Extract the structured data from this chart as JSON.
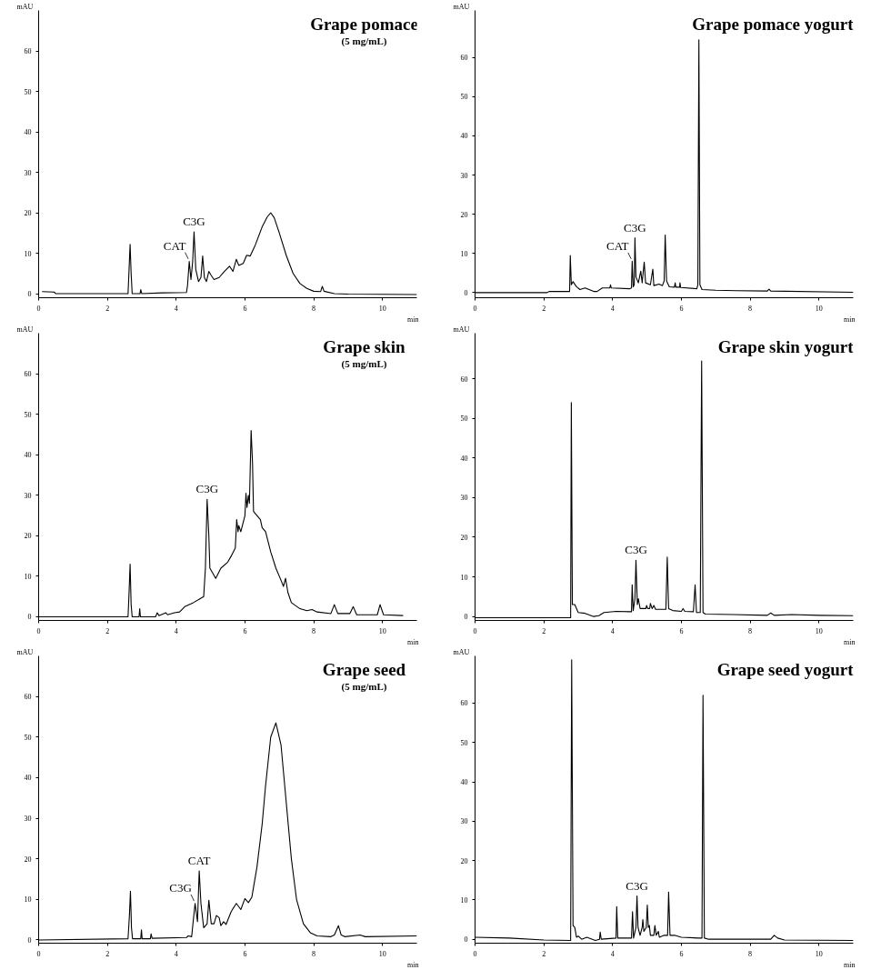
{
  "chart_data": [
    {
      "type": "line",
      "title": "Grape pomace",
      "subtitle": "(5 mg/mL)",
      "xlabel": "min",
      "ylabel": "mAU",
      "xlim": [
        0,
        11
      ],
      "ylim": [
        -1,
        70
      ],
      "xticks": [
        0,
        2,
        4,
        6,
        8,
        10
      ],
      "yticks": [
        0,
        10,
        20,
        30,
        40,
        50,
        60
      ],
      "grid": false,
      "x": [
        0.1,
        0.45,
        0.5,
        2.6,
        2.63,
        2.66,
        2.69,
        2.72,
        2.95,
        2.97,
        3.0,
        3.6,
        4.3,
        4.33,
        4.38,
        4.43,
        4.48,
        4.52,
        4.57,
        4.65,
        4.72,
        4.77,
        4.82,
        4.88,
        4.95,
        5.02,
        5.1,
        5.25,
        5.4,
        5.55,
        5.65,
        5.75,
        5.82,
        5.95,
        6.05,
        6.15,
        6.3,
        6.5,
        6.65,
        6.75,
        6.85,
        7.0,
        7.2,
        7.4,
        7.6,
        7.8,
        8.0,
        8.2,
        8.25,
        8.3,
        8.6,
        9.0,
        11
      ],
      "series": [
        {
          "color": "#000000",
          "values": [
            0.5,
            0.4,
            0,
            0,
            6,
            12.2,
            5,
            0,
            0,
            1,
            0,
            0.2,
            0.3,
            2,
            8,
            3.5,
            8,
            15.3,
            6,
            3,
            4,
            9.3,
            4,
            3,
            5.5,
            4.5,
            3.5,
            4,
            5.5,
            6.8,
            5.5,
            8.5,
            7,
            7.5,
            9.5,
            9.3,
            12,
            16.5,
            19,
            20,
            18.8,
            15,
            9.5,
            5,
            2.5,
            1.3,
            0.6,
            0.5,
            1.8,
            0.6,
            0,
            -0.1,
            -0.2
          ]
        }
      ],
      "annotations": [
        {
          "text": "CAT",
          "x": 4.38,
          "y": 8
        },
        {
          "text": "C3G",
          "x": 4.52,
          "y": 15.3
        }
      ]
    },
    {
      "type": "line",
      "title": "Grape pomace yogurt",
      "xlabel": "min",
      "ylabel": "mAU",
      "xlim": [
        0,
        11
      ],
      "ylim": [
        -1.3,
        72
      ],
      "xticks": [
        0,
        2,
        4,
        6,
        8,
        10
      ],
      "yticks": [
        0,
        10,
        20,
        30,
        40,
        50,
        60
      ],
      "grid": false,
      "x": [
        0,
        2.1,
        2.15,
        2.75,
        2.77,
        2.8,
        2.85,
        2.95,
        3.05,
        3.2,
        3.45,
        3.55,
        3.7,
        3.92,
        3.94,
        3.96,
        4.5,
        4.55,
        4.57,
        4.6,
        4.63,
        4.65,
        4.68,
        4.75,
        4.82,
        4.86,
        4.92,
        4.96,
        5.1,
        5.17,
        5.2,
        5.35,
        5.45,
        5.5,
        5.53,
        5.57,
        5.65,
        5.8,
        5.82,
        5.84,
        5.95,
        5.96,
        5.98,
        6.45,
        6.48,
        6.51,
        6.54,
        6.6,
        7,
        7.6,
        8.5,
        8.55,
        8.6,
        11
      ],
      "series": [
        {
          "color": "#000000",
          "values": [
            0,
            0,
            0.3,
            0.3,
            9.5,
            2,
            2.8,
            1.5,
            0.8,
            1.2,
            0.3,
            0.3,
            1.2,
            1.2,
            2,
            1.2,
            1,
            1.2,
            8,
            1.5,
            2,
            14,
            4,
            2.5,
            5.5,
            2.5,
            7.8,
            2.5,
            2,
            6,
            1.8,
            2.2,
            1.8,
            3,
            14.7,
            3,
            1.5,
            1.4,
            2.5,
            1.4,
            1.4,
            2.5,
            1.3,
            1,
            2,
            64.5,
            2,
            0.8,
            0.6,
            0.5,
            0.4,
            0.9,
            0.4,
            0.1
          ]
        }
      ],
      "annotations": [
        {
          "text": "CAT",
          "x": 4.57,
          "y": 8
        },
        {
          "text": "C3G",
          "x": 4.65,
          "y": 14
        }
      ]
    },
    {
      "type": "line",
      "title": "Grape skin",
      "subtitle": "(5 mg/mL)",
      "xlabel": "min",
      "ylabel": "mAU",
      "xlim": [
        0,
        11
      ],
      "ylim": [
        -0.9,
        70
      ],
      "xticks": [
        0,
        2,
        4,
        6,
        8,
        10
      ],
      "yticks": [
        0,
        10,
        20,
        30,
        40,
        50,
        60
      ],
      "grid": false,
      "x": [
        0,
        2.6,
        2.63,
        2.66,
        2.69,
        2.72,
        2.92,
        2.94,
        2.96,
        3.4,
        3.45,
        3.5,
        3.7,
        3.75,
        3.95,
        4.1,
        4.25,
        4.5,
        4.7,
        4.8,
        4.85,
        4.9,
        4.95,
        4.98,
        5.05,
        5.15,
        5.3,
        5.5,
        5.6,
        5.72,
        5.76,
        5.8,
        5.82,
        5.88,
        6.0,
        6.03,
        6.06,
        6.1,
        6.13,
        6.18,
        6.22,
        6.25,
        6.35,
        6.45,
        6.5,
        6.6,
        6.75,
        6.9,
        7.05,
        7.12,
        7.18,
        7.25,
        7.35,
        7.6,
        7.8,
        7.95,
        8.1,
        8.5,
        8.6,
        8.7,
        9.05,
        9.15,
        9.25,
        9.85,
        9.93,
        10.03,
        10.6
      ],
      "series": [
        {
          "color": "#000000",
          "values": [
            0,
            0,
            6,
            13,
            3,
            0,
            0,
            2,
            0,
            0,
            1,
            0.3,
            1,
            0.5,
            1,
            1.2,
            2.5,
            3.5,
            4.5,
            5,
            12,
            29,
            20,
            12,
            11,
            9.5,
            12,
            13.5,
            15,
            17,
            24,
            21,
            22.5,
            21,
            25,
            30.5,
            27,
            30,
            28,
            46,
            38,
            26,
            25,
            24,
            22,
            21,
            16,
            12,
            9,
            7.5,
            9.5,
            6,
            3.5,
            2,
            1.5,
            1.8,
            1.2,
            0.8,
            3,
            0.8,
            0.8,
            2.5,
            0.5,
            0.5,
            3,
            0.5,
            0.3
          ]
        }
      ],
      "annotations": [
        {
          "text": "C3G",
          "x": 4.9,
          "y": 29
        }
      ]
    },
    {
      "type": "line",
      "title": "Grape skin yogurt",
      "xlabel": "min",
      "ylabel": "mAU",
      "xlim": [
        0,
        11
      ],
      "ylim": [
        -1,
        71.5
      ],
      "xticks": [
        0,
        2,
        4,
        6,
        8,
        10
      ],
      "yticks": [
        0,
        10,
        20,
        30,
        40,
        50,
        60
      ],
      "grid": false,
      "x": [
        0,
        2.5,
        2.78,
        2.8,
        2.83,
        2.9,
        3.0,
        3.2,
        3.45,
        3.6,
        3.75,
        4.1,
        4.5,
        4.55,
        4.57,
        4.6,
        4.65,
        4.68,
        4.72,
        4.75,
        4.8,
        4.97,
        4.99,
        5.02,
        5.08,
        5.1,
        5.15,
        5.2,
        5.25,
        5.55,
        5.59,
        5.63,
        5.75,
        6.0,
        6.05,
        6.1,
        6.35,
        6.4,
        6.44,
        6.55,
        6.59,
        6.63,
        6.7,
        7.5,
        8.5,
        8.6,
        8.7,
        9.2,
        10,
        11
      ],
      "series": [
        {
          "color": "#000000",
          "values": [
            -0.3,
            -0.3,
            -0.3,
            54,
            3,
            3,
            1,
            0.8,
            0,
            0.2,
            1,
            1.3,
            1.2,
            1.2,
            8,
            1.5,
            4.5,
            14.2,
            3,
            4.5,
            2,
            2,
            2.8,
            2,
            2,
            3.3,
            2,
            2.8,
            1.8,
            1.8,
            15,
            2,
            1.5,
            1.3,
            2,
            1.3,
            1.2,
            8,
            1,
            1,
            64.5,
            1,
            0.6,
            0.5,
            0.3,
            0.9,
            0.3,
            0.5,
            0.3,
            0.2
          ]
        }
      ],
      "annotations": [
        {
          "text": "C3G",
          "x": 4.68,
          "y": 14.2
        }
      ]
    },
    {
      "type": "line",
      "title": "Grape seed",
      "subtitle": "(5 mg/mL)",
      "xlabel": "min",
      "ylabel": "mAU",
      "xlim": [
        0,
        11
      ],
      "ylim": [
        -0.8,
        70
      ],
      "xticks": [
        0,
        2,
        4,
        6,
        8,
        10
      ],
      "yticks": [
        0,
        10,
        20,
        30,
        40,
        50,
        60
      ],
      "grid": false,
      "x": [
        0,
        2.6,
        2.64,
        2.67,
        2.7,
        2.73,
        2.97,
        2.99,
        3.01,
        3.25,
        3.27,
        3.3,
        4.3,
        4.35,
        4.45,
        4.5,
        4.55,
        4.62,
        4.67,
        4.72,
        4.8,
        4.9,
        4.95,
        5.02,
        5.1,
        5.17,
        5.25,
        5.3,
        5.38,
        5.45,
        5.6,
        5.75,
        5.88,
        6.0,
        6.1,
        6.2,
        6.35,
        6.5,
        6.6,
        6.75,
        6.9,
        7.05,
        7.2,
        7.35,
        7.5,
        7.7,
        7.9,
        8.1,
        8.5,
        8.6,
        8.72,
        8.8,
        8.9,
        9.35,
        9.5,
        11
      ],
      "series": [
        {
          "color": "#000000",
          "values": [
            0,
            0.3,
            6,
            12,
            3,
            0.3,
            0.3,
            2.5,
            0.3,
            0.3,
            1.5,
            0.4,
            0.6,
            1,
            0.8,
            5,
            9,
            4.5,
            17,
            9,
            3,
            4,
            9.8,
            4,
            4,
            6,
            5.5,
            3.5,
            4.5,
            3.8,
            7,
            9,
            7.5,
            10.2,
            9.2,
            10.5,
            18,
            28.5,
            38,
            50,
            53.5,
            48,
            34,
            20,
            10,
            4,
            1.8,
            1,
            0.8,
            1.2,
            3.5,
            1.2,
            0.8,
            1.2,
            0.8,
            1
          ]
        }
      ],
      "annotations": [
        {
          "text": "C3G",
          "x": 4.55,
          "y": 9
        },
        {
          "text": "CAT",
          "x": 4.67,
          "y": 17
        }
      ]
    },
    {
      "type": "line",
      "title": "Grape seed yogurt",
      "xlabel": "min",
      "ylabel": "mAU",
      "xlim": [
        0,
        11
      ],
      "ylim": [
        -1,
        72
      ],
      "xticks": [
        0,
        2,
        4,
        6,
        8,
        10
      ],
      "yticks": [
        0,
        10,
        20,
        30,
        40,
        50,
        60
      ],
      "grid": false,
      "x": [
        0,
        1,
        2,
        2.78,
        2.81,
        2.85,
        2.9,
        2.95,
        3.0,
        3.1,
        3.25,
        3.5,
        3.62,
        3.64,
        3.67,
        4.1,
        4.12,
        4.15,
        4.55,
        4.58,
        4.61,
        4.68,
        4.71,
        4.74,
        4.8,
        4.86,
        4.88,
        4.91,
        4.98,
        5.01,
        5.04,
        5.07,
        5.1,
        5.2,
        5.23,
        5.27,
        5.33,
        5.36,
        5.5,
        5.6,
        5.63,
        5.67,
        5.8,
        6,
        6.5,
        6.6,
        6.63,
        6.67,
        6.8,
        8.6,
        8.7,
        8.8,
        9,
        11
      ],
      "series": [
        {
          "color": "#000000",
          "values": [
            0.5,
            0.3,
            -0.2,
            -0.3,
            71,
            3.5,
            3,
            0.5,
            0.8,
            0,
            0.5,
            -0.3,
            0,
            1.8,
            0,
            0.3,
            8.3,
            0.3,
            0.3,
            7,
            0.3,
            3,
            11,
            3,
            1,
            3,
            5,
            2,
            3,
            8.7,
            3,
            3.5,
            1,
            1,
            3.5,
            1,
            2,
            0.5,
            1,
            1,
            12,
            1,
            1,
            0.5,
            0.3,
            0.3,
            62,
            0.3,
            0,
            0,
            1,
            0.3,
            -0.2,
            -0.3
          ]
        }
      ],
      "annotations": [
        {
          "text": "C3G",
          "x": 4.71,
          "y": 11
        }
      ]
    }
  ]
}
